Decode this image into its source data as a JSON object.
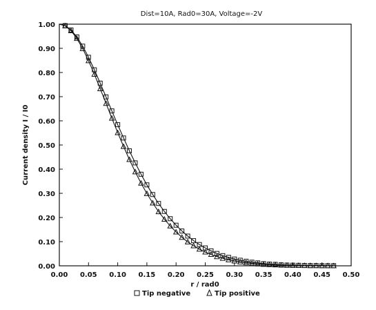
{
  "chart_data": {
    "type": "scatter",
    "title": "Dist=10A,  Rad0=30A,  Voltage=-2V",
    "xlabel": "r  /  rad0",
    "ylabel": "Current  density  I  /  I0",
    "xlim": [
      0,
      0.5
    ],
    "ylim": [
      0,
      1.0
    ],
    "x_ticks": [
      "0.00",
      "0.05",
      "0.10",
      "0.15",
      "0.20",
      "0.25",
      "0.30",
      "0.35",
      "0.40",
      "0.45",
      "0.50"
    ],
    "y_ticks": [
      "0.00",
      "0.10",
      "0.20",
      "0.30",
      "0.40",
      "0.50",
      "0.60",
      "0.70",
      "0.80",
      "0.90",
      "1.00"
    ],
    "grid": false,
    "legend_position": "bottom",
    "series": [
      {
        "name": "Tip  negative",
        "marker": "square",
        "x": [
          0.0,
          0.01,
          0.02,
          0.03,
          0.04,
          0.05,
          0.06,
          0.07,
          0.08,
          0.09,
          0.1,
          0.11,
          0.12,
          0.13,
          0.14,
          0.15,
          0.16,
          0.17,
          0.18,
          0.19,
          0.2,
          0.21,
          0.22,
          0.23,
          0.24,
          0.25,
          0.26,
          0.27,
          0.28,
          0.29,
          0.3,
          0.31,
          0.32,
          0.33,
          0.34,
          0.35,
          0.36,
          0.37,
          0.38,
          0.39,
          0.4,
          0.41,
          0.42,
          0.43,
          0.44,
          0.45,
          0.46,
          0.47
        ],
        "values": [
          1.0,
          0.994,
          0.976,
          0.947,
          0.909,
          0.863,
          0.811,
          0.756,
          0.699,
          0.641,
          0.584,
          0.529,
          0.476,
          0.426,
          0.379,
          0.335,
          0.295,
          0.258,
          0.225,
          0.195,
          0.168,
          0.144,
          0.123,
          0.104,
          0.088,
          0.074,
          0.062,
          0.051,
          0.042,
          0.035,
          0.028,
          0.023,
          0.019,
          0.015,
          0.012,
          0.009,
          0.007,
          0.006,
          0.004,
          0.003,
          0.0025,
          0.002,
          0.0015,
          0.001,
          0.001,
          0.0008,
          0.0006,
          0.0005
        ]
      },
      {
        "name": "Tip  positive",
        "marker": "triangle",
        "x": [
          0.0,
          0.01,
          0.02,
          0.03,
          0.04,
          0.05,
          0.06,
          0.07,
          0.08,
          0.09,
          0.1,
          0.11,
          0.12,
          0.13,
          0.14,
          0.15,
          0.16,
          0.17,
          0.18,
          0.19,
          0.2,
          0.21,
          0.22,
          0.23,
          0.24,
          0.25,
          0.26,
          0.27,
          0.28,
          0.29,
          0.3,
          0.31,
          0.32,
          0.33,
          0.34,
          0.35,
          0.36,
          0.37,
          0.38,
          0.39,
          0.4,
          0.41,
          0.42,
          0.43,
          0.44,
          0.45,
          0.46,
          0.47
        ],
        "values": [
          1.0,
          0.993,
          0.973,
          0.941,
          0.899,
          0.849,
          0.793,
          0.733,
          0.672,
          0.611,
          0.551,
          0.494,
          0.44,
          0.389,
          0.342,
          0.299,
          0.26,
          0.224,
          0.193,
          0.165,
          0.14,
          0.118,
          0.099,
          0.083,
          0.069,
          0.057,
          0.047,
          0.038,
          0.031,
          0.025,
          0.02,
          0.016,
          0.013,
          0.01,
          0.008,
          0.006,
          0.005,
          0.004,
          0.003,
          0.002,
          0.0018,
          0.0014,
          0.001,
          0.0008,
          0.0006,
          0.0005,
          0.0004,
          0.0003
        ]
      }
    ]
  }
}
